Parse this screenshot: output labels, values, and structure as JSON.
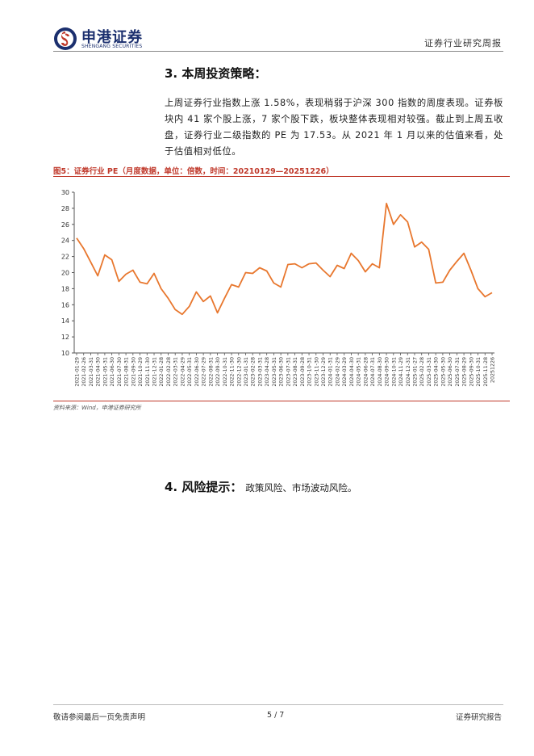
{
  "header": {
    "logo_cn": "申港证券",
    "logo_en": "SHENGANG SECURITIES",
    "report_type": "证券行业研究周报"
  },
  "section3": {
    "title": "3. 本周投资策略：",
    "paragraph": "上周证券行业指数上涨 1.58%，表现稍弱于沪深 300 指数的周度表现。证券板块内 41 家个股上涨，7 家个股下跌，板块整体表现相对较强。截止到上周五收盘，证券行业二级指数的 PE 为 17.53。从 2021 年 1 月以来的估值来看，处于估值相对低位。"
  },
  "figure": {
    "title": "图5：证券行业 PE（月度数据，单位：倍数，时间：20210129—20251226）",
    "source": "资料来源：Wind，申港证券研究所"
  },
  "section4": {
    "title": "4. 风险提示：",
    "text": "政策风险、市场波动风险。"
  },
  "footer": {
    "left": "敬请参阅最后一页免责声明",
    "page": "5 / 7",
    "right": "证券研究报告"
  },
  "colors": {
    "line": "#e8772e",
    "brand": "#1b2f6e",
    "accent": "#c0392b"
  },
  "chart_data": {
    "type": "line",
    "title": "",
    "xlabel": "",
    "ylabel": "",
    "ylim": [
      10,
      30
    ],
    "yticks": [
      10,
      12,
      14,
      16,
      18,
      20,
      22,
      24,
      26,
      28,
      30
    ],
    "grid": false,
    "x": [
      "2021-01-29",
      "2021-02-26",
      "2021-03-31",
      "2021-04-30",
      "2021-05-31",
      "2021-06-30",
      "2021-07-30",
      "2021-08-31",
      "2021-09-30",
      "2021-10-29",
      "2021-11-30",
      "2021-12-31",
      "2022-01-28",
      "2022-02-28",
      "2022-03-31",
      "2022-04-29",
      "2022-05-31",
      "2022-06-30",
      "2022-07-29",
      "2022-08-31",
      "2022-09-30",
      "2022-10-31",
      "2022-11-30",
      "2022-12-30",
      "2023-01-31",
      "2023-02-28",
      "2023-03-31",
      "2023-04-28",
      "2023-05-31",
      "2023-06-30",
      "2023-07-31",
      "2023-08-31",
      "2023-09-28",
      "2023-10-31",
      "2023-11-30",
      "2023-12-29",
      "2024-01-31",
      "2024-02-29",
      "2024-03-29",
      "2024-04-30",
      "2024-05-31",
      "2024-06-28",
      "2024-07-31",
      "2024-08-30",
      "2024-09-30",
      "2024-10-31",
      "2024-11-29",
      "2024-12-31",
      "2025-01-27",
      "2025-02-28",
      "2025-03-31",
      "2025-04-30",
      "2025-05-30",
      "2025-06-30",
      "2025-07-31",
      "2025-08-29",
      "2025-09-30",
      "2025-10-31",
      "2025-11-28",
      "20251226"
    ],
    "series": [
      {
        "values": [
          24.3,
          23.0,
          21.3,
          19.6,
          22.2,
          21.6,
          18.9,
          19.8,
          20.3,
          18.8,
          18.6,
          19.9,
          18.0,
          16.8,
          15.4,
          14.8,
          15.8,
          17.6,
          16.4,
          17.1,
          15.0,
          16.8,
          18.5,
          18.2,
          20.0,
          19.9,
          20.6,
          20.2,
          18.7,
          18.2,
          21.0,
          21.1,
          20.6,
          21.1,
          21.2,
          20.3,
          19.5,
          20.9,
          20.5,
          22.4,
          21.5,
          20.1,
          21.1,
          20.6,
          28.6,
          26.0,
          27.2,
          26.3,
          23.2,
          23.8,
          22.9,
          18.7,
          18.8,
          20.3,
          21.4,
          22.4,
          20.3,
          18.0,
          17.0,
          17.5
        ]
      }
    ]
  }
}
